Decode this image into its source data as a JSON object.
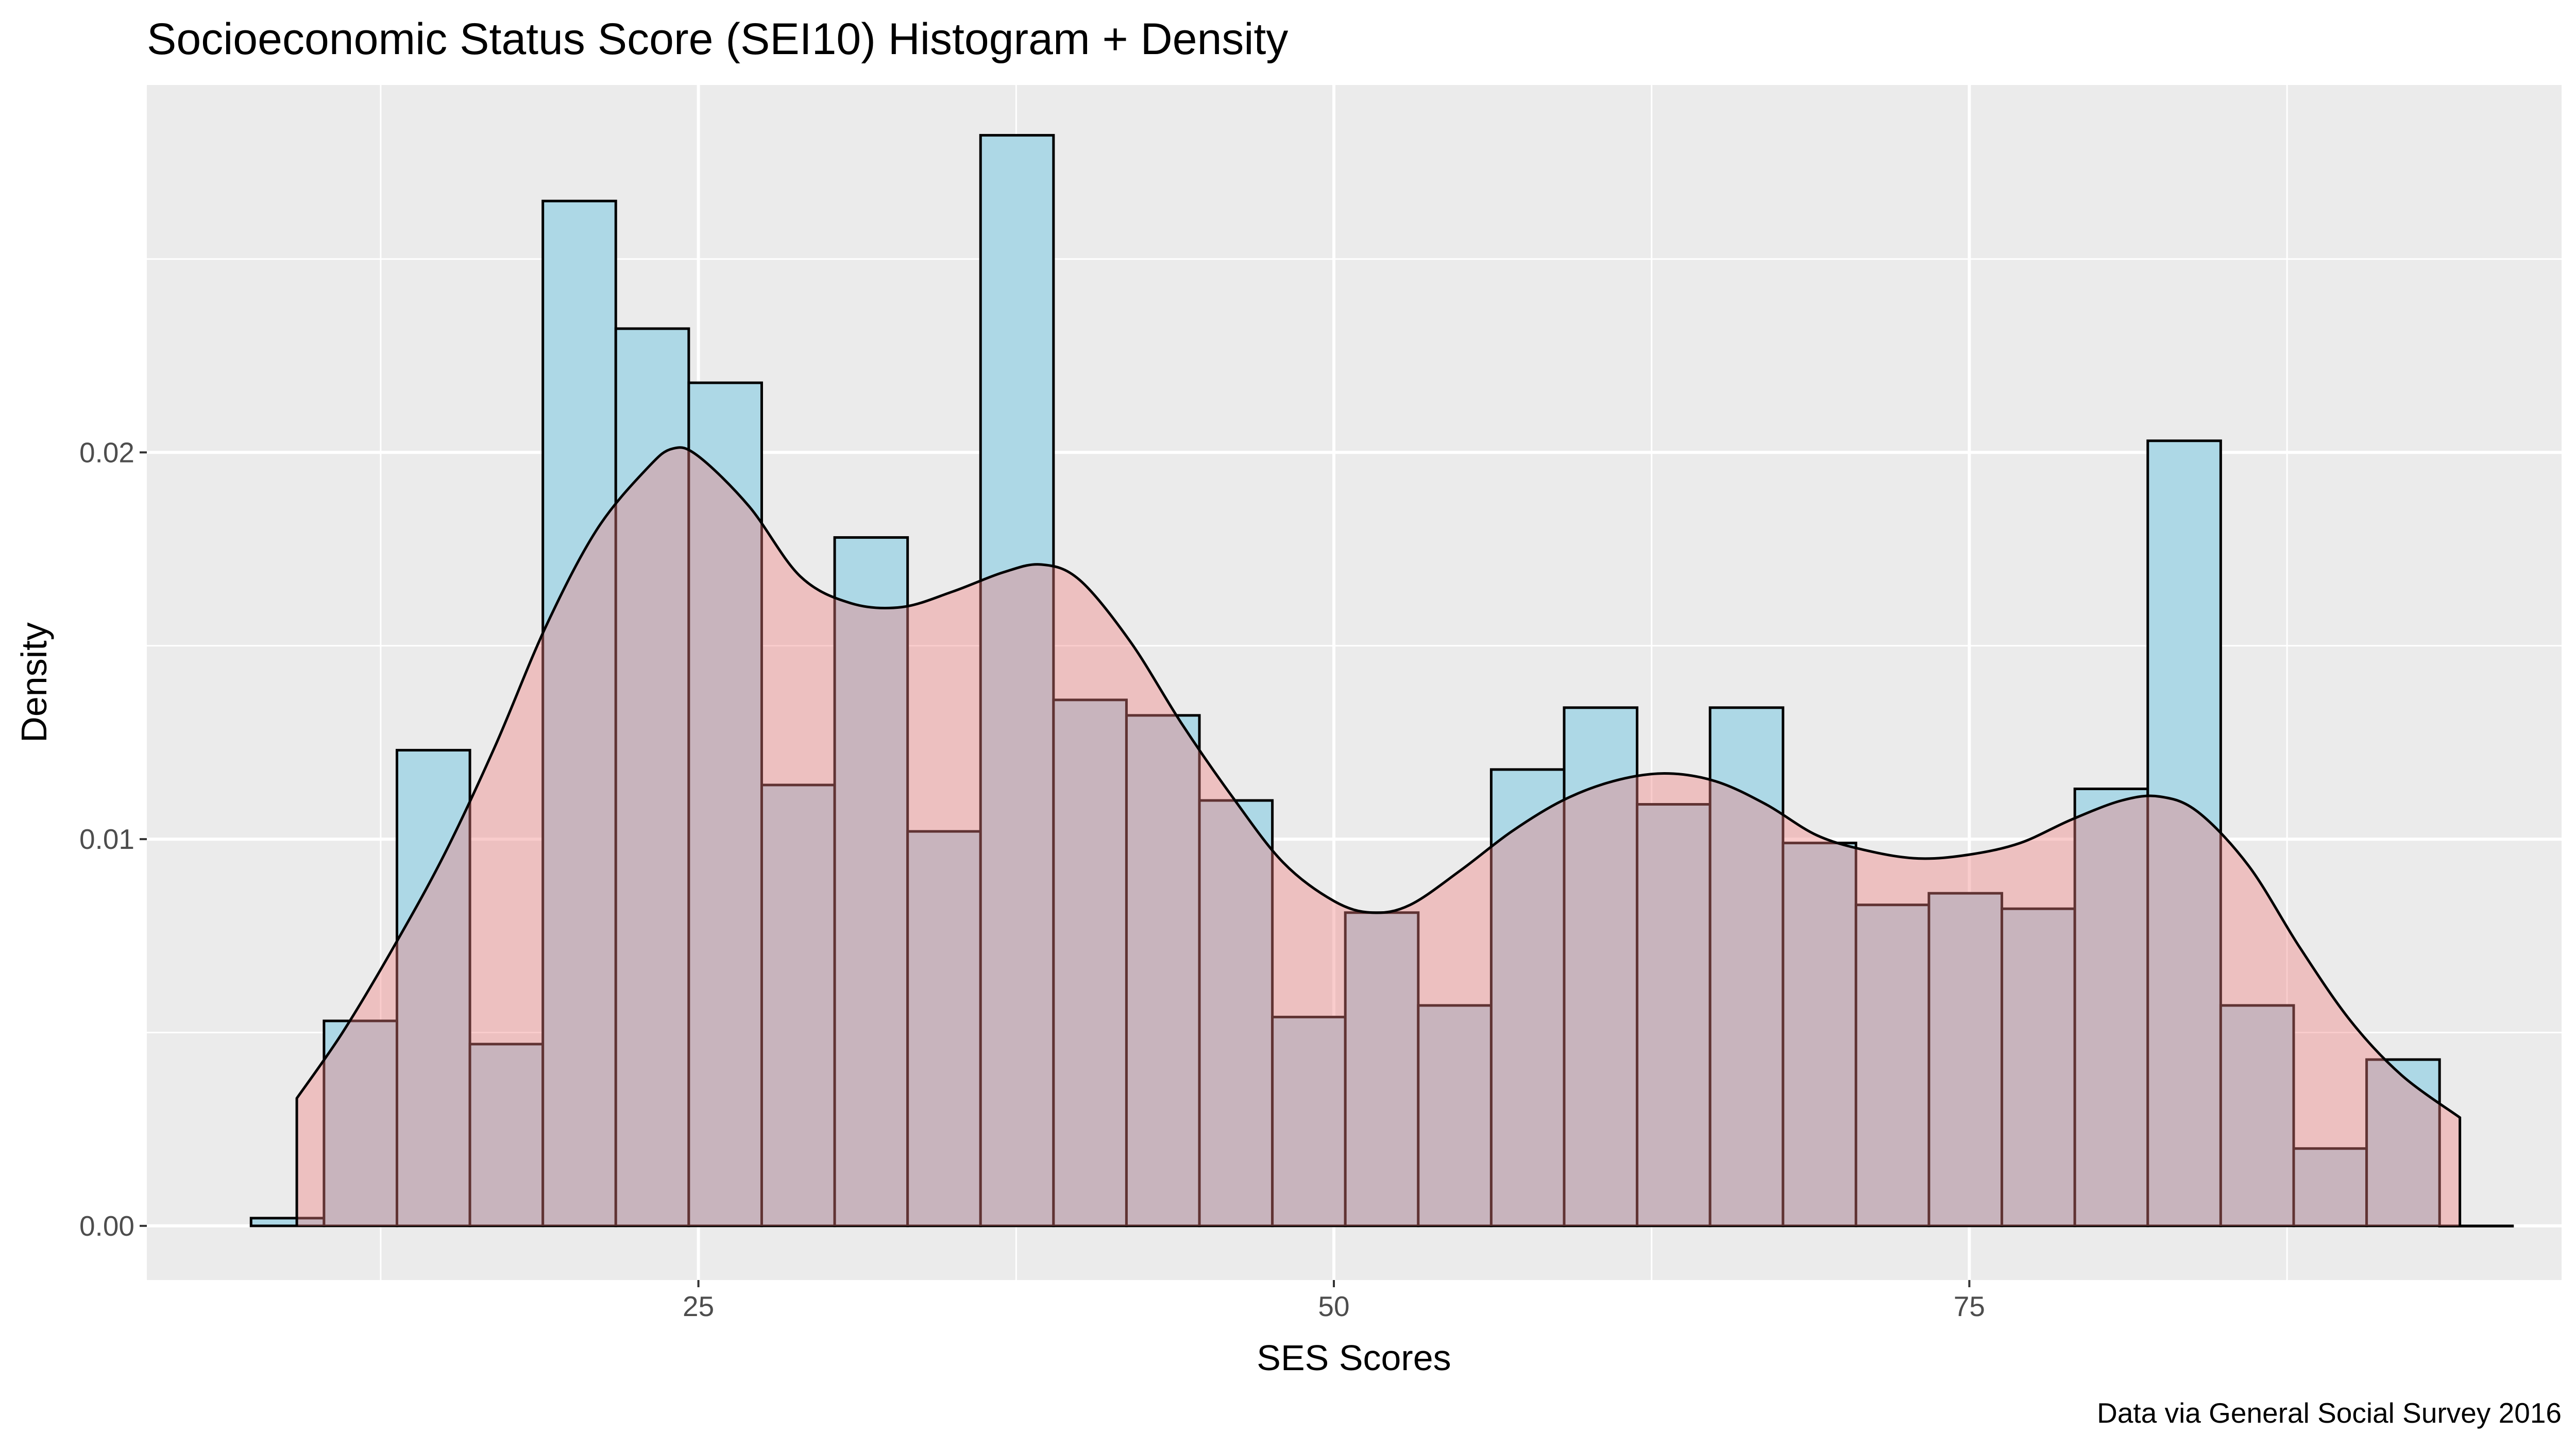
{
  "chart_data": {
    "type": "histogram-density",
    "title": "Socioeconomic Status Score (SEI10) Histogram + Density",
    "xlabel": "SES Scores",
    "ylabel": "Density",
    "caption": "Data via General Social Survey 2016",
    "xlim": [
      3.3,
      98.3
    ],
    "ylim": [
      -0.0014,
      0.0295
    ],
    "x_ticks": [
      25,
      50,
      75
    ],
    "x_tick_labels": [
      "25",
      "50",
      "75"
    ],
    "y_ticks": [
      0,
      0.01,
      0.02
    ],
    "y_tick_labels": [
      "0.00",
      "0.01",
      "0.02"
    ],
    "grid": true,
    "legend": "none",
    "histogram": {
      "fill_color": "#add8e6",
      "outline_color": "#000000",
      "bin_edges": [
        7.4,
        10.27,
        13.14,
        16.01,
        18.88,
        21.75,
        24.62,
        27.49,
        30.36,
        33.23,
        36.1,
        38.97,
        41.84,
        44.71,
        47.58,
        50.45,
        53.32,
        56.19,
        59.06,
        61.93,
        64.8,
        67.67,
        70.54,
        73.41,
        76.28,
        79.15,
        82.02,
        84.89,
        87.76,
        90.63,
        93.5,
        96.37
      ],
      "values": [
        0.0002,
        0.0053,
        0.0123,
        0.0047,
        0.0265,
        0.0232,
        0.0218,
        0.0114,
        0.0178,
        0.0102,
        0.0282,
        0.0136,
        0.0132,
        0.011,
        0.0054,
        0.0081,
        0.0057,
        0.0118,
        0.0134,
        0.0109,
        0.0134,
        0.0099,
        0.0083,
        0.0086,
        0.0082,
        0.0113,
        0.0203,
        0.0057,
        0.002,
        0.0043,
        0.0
      ]
    },
    "density": {
      "fill_color": "#f08080",
      "line_color": "#000000",
      "x": [
        9.2,
        11,
        13,
        15,
        17,
        19,
        21,
        23,
        24,
        25,
        27,
        29,
        31,
        33,
        35,
        37,
        38.5,
        40,
        42,
        44,
        46,
        48,
        50,
        51.5,
        53,
        55,
        57,
        59,
        61,
        63,
        65,
        67,
        69,
        71,
        73,
        75,
        77,
        79,
        81,
        82.5,
        84,
        86,
        88,
        90,
        92,
        94.3
      ],
      "y": [
        0.0033,
        0.005,
        0.0072,
        0.0096,
        0.0124,
        0.0155,
        0.018,
        0.0196,
        0.0201,
        0.0199,
        0.0186,
        0.0168,
        0.0161,
        0.016,
        0.0164,
        0.0169,
        0.0171,
        0.0167,
        0.0151,
        0.013,
        0.0111,
        0.0094,
        0.0084,
        0.0081,
        0.0083,
        0.0092,
        0.0102,
        0.011,
        0.0115,
        0.0117,
        0.0115,
        0.0109,
        0.0101,
        0.0097,
        0.0095,
        0.0096,
        0.0099,
        0.0105,
        0.011,
        0.0111,
        0.0107,
        0.0093,
        0.0072,
        0.0053,
        0.0039,
        0.0028
      ]
    }
  }
}
